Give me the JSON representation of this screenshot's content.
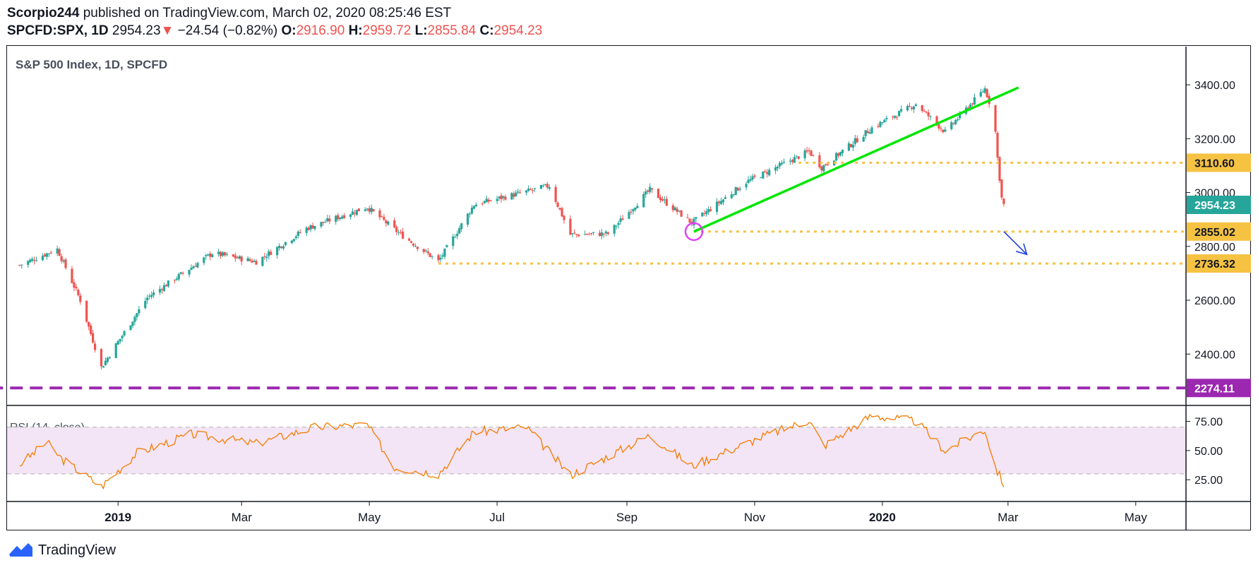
{
  "header": {
    "author": "Scorpio244",
    "published_text": "published on TradingView.com, March 02, 2020 08:25:46 EST",
    "symbol": "SPCFD:SPX, 1D",
    "last": "2954.23",
    "arrow": "▼",
    "change": "−24.54 (−0.82%)",
    "o_label": "O:",
    "o_value": "2916.90",
    "h_label": "H:",
    "h_value": "2959.72",
    "l_label": "L:",
    "l_value": "2855.84",
    "c_label": "C:",
    "c_value": "2954.23"
  },
  "colors": {
    "up": "#26a69a",
    "down": "#ef5350",
    "trendline": "#00e600",
    "level_line": "#f5c242",
    "level_label_bg": "#f5c242",
    "last_price_bg": "#26a69a",
    "support_dashed": "#9c27b0",
    "rsi": "#f57c00",
    "rsi_band": "#f3e5f5",
    "circle": "#e040fb",
    "arrow": "#1e3fd8"
  },
  "footer": {
    "brand": "TradingView",
    "icon": "tradingview-logo-icon"
  },
  "chart_data": [
    {
      "type": "candlestick",
      "title": "S&P 500 Index, 1D, SPCFD",
      "y_ticks": [
        "3400.00",
        "3200.00",
        "3000.00",
        "2800.00",
        "2600.00",
        "2400.00"
      ],
      "ylim": [
        2225,
        3500
      ],
      "x_ticks": [
        "2019",
        "Mar",
        "May",
        "Jul",
        "Sep",
        "Nov",
        "2020",
        "Mar",
        "May"
      ],
      "grid": false,
      "close_series_approx": [
        {
          "date": "2018-11-15",
          "close": 2730
        },
        {
          "date": "2018-12-03",
          "close": 2790
        },
        {
          "date": "2018-12-14",
          "close": 2600
        },
        {
          "date": "2018-12-24",
          "close": 2351
        },
        {
          "date": "2019-01-15",
          "close": 2610
        },
        {
          "date": "2019-02-15",
          "close": 2775
        },
        {
          "date": "2019-03-08",
          "close": 2743
        },
        {
          "date": "2019-04-01",
          "close": 2867
        },
        {
          "date": "2019-04-30",
          "close": 2946
        },
        {
          "date": "2019-05-15",
          "close": 2850
        },
        {
          "date": "2019-06-03",
          "close": 2744
        },
        {
          "date": "2019-06-20",
          "close": 2955
        },
        {
          "date": "2019-07-26",
          "close": 3025
        },
        {
          "date": "2019-08-05",
          "close": 2844
        },
        {
          "date": "2019-08-23",
          "close": 2847
        },
        {
          "date": "2019-09-12",
          "close": 3010
        },
        {
          "date": "2019-10-02",
          "close": 2887
        },
        {
          "date": "2019-10-28",
          "close": 3039
        },
        {
          "date": "2019-11-27",
          "close": 3153
        },
        {
          "date": "2019-12-03",
          "close": 3093
        },
        {
          "date": "2019-12-27",
          "close": 3240
        },
        {
          "date": "2020-01-17",
          "close": 3329
        },
        {
          "date": "2020-01-31",
          "close": 3225
        },
        {
          "date": "2020-02-19",
          "close": 3386
        },
        {
          "date": "2020-02-21",
          "close": 3337
        },
        {
          "date": "2020-02-24",
          "close": 3225
        },
        {
          "date": "2020-02-25",
          "close": 3128
        },
        {
          "date": "2020-02-27",
          "close": 2979
        },
        {
          "date": "2020-02-28",
          "close": 2954.23
        }
      ],
      "annotations": {
        "trendline": {
          "from": {
            "date": "2019-10-03",
            "value": 2855
          },
          "to": {
            "date": "2020-03-06",
            "value": 3390
          }
        },
        "horizontal_levels": [
          {
            "label": "3110.60",
            "value": 3110.6,
            "from_date": "2019-11-22",
            "style": "dotted"
          },
          {
            "label": "2855.02",
            "value": 2855.02,
            "from_date": "2019-10-03",
            "style": "dotted"
          },
          {
            "label": "2736.32",
            "value": 2736.32,
            "from_date": "2019-06-03",
            "style": "dotted"
          },
          {
            "label": "2274.11",
            "value": 2274.11,
            "from_date": "2018-11-01",
            "style": "dashed"
          }
        ],
        "last_price_label": "2954.23",
        "circle": {
          "date": "2019-10-03",
          "value": 2855
        },
        "projection_arrow": {
          "from": {
            "date": "2020-02-28",
            "value": 2855
          },
          "to": {
            "date": "2020-03-10",
            "value": 2770
          }
        }
      }
    },
    {
      "type": "line",
      "title": "RSI (14, close)",
      "y_ticks": [
        "75.00",
        "50.00",
        "25.00"
      ],
      "ylim": [
        10,
        85
      ],
      "band": [
        30,
        70
      ],
      "x_ticks": [
        "2019",
        "Mar",
        "May",
        "Jul",
        "Sep",
        "Nov",
        "2020",
        "Mar",
        "May"
      ],
      "series_approx": [
        {
          "date": "2018-11-15",
          "value": 38
        },
        {
          "date": "2018-11-28",
          "value": 57
        },
        {
          "date": "2018-12-05",
          "value": 43
        },
        {
          "date": "2018-12-24",
          "value": 19
        },
        {
          "date": "2019-01-10",
          "value": 48
        },
        {
          "date": "2019-02-05",
          "value": 64
        },
        {
          "date": "2019-03-08",
          "value": 56
        },
        {
          "date": "2019-04-05",
          "value": 70
        },
        {
          "date": "2019-04-30",
          "value": 72
        },
        {
          "date": "2019-05-13",
          "value": 36
        },
        {
          "date": "2019-06-03",
          "value": 30
        },
        {
          "date": "2019-06-20",
          "value": 66
        },
        {
          "date": "2019-07-15",
          "value": 70
        },
        {
          "date": "2019-08-05",
          "value": 29
        },
        {
          "date": "2019-09-12",
          "value": 63
        },
        {
          "date": "2019-10-02",
          "value": 37
        },
        {
          "date": "2019-11-05",
          "value": 62
        },
        {
          "date": "2019-11-27",
          "value": 76
        },
        {
          "date": "2019-12-04",
          "value": 54
        },
        {
          "date": "2019-12-27",
          "value": 80
        },
        {
          "date": "2020-01-17",
          "value": 75
        },
        {
          "date": "2020-01-31",
          "value": 50
        },
        {
          "date": "2020-02-19",
          "value": 68
        },
        {
          "date": "2020-02-24",
          "value": 36
        },
        {
          "date": "2020-02-28",
          "value": 21
        }
      ]
    }
  ]
}
